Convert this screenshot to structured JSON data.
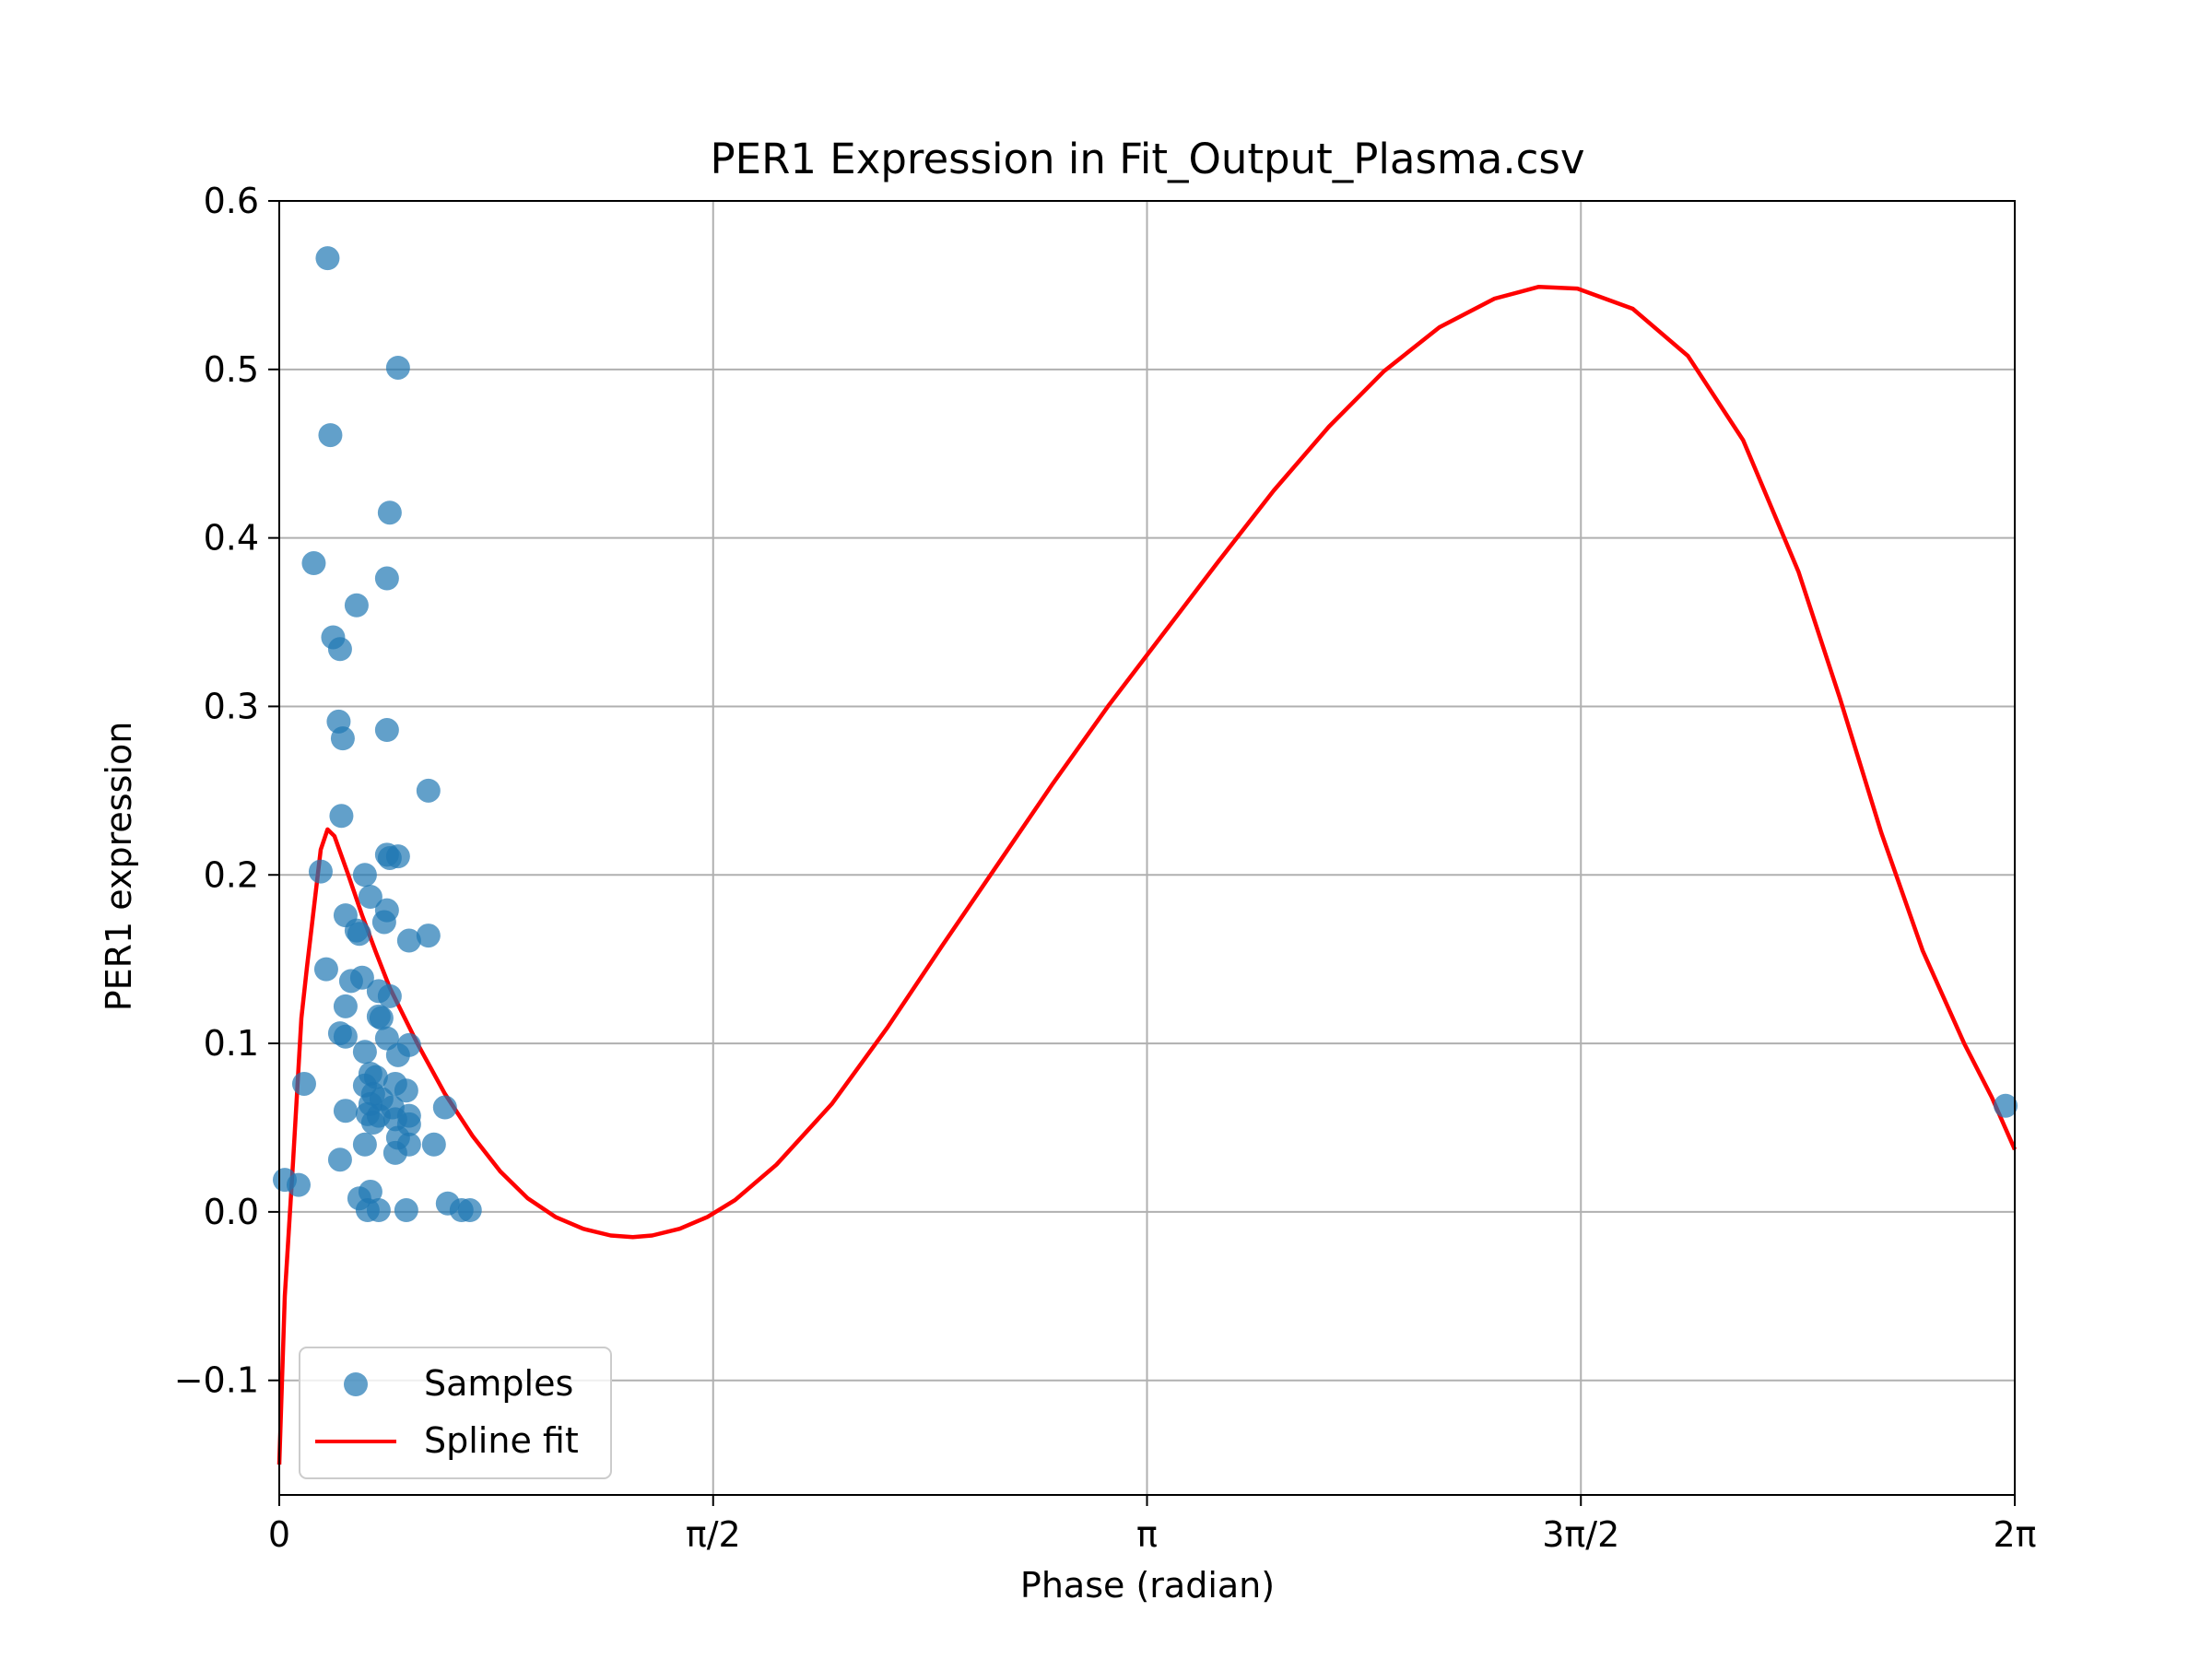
{
  "chart_data": {
    "type": "scatter",
    "title": "PER1 Expression in Fit_Output_Plasma.csv",
    "xlabel": "Phase (radian)",
    "ylabel": "PER1 expression",
    "xlim": [
      0,
      6.2832
    ],
    "ylim": [
      -0.168,
      0.6
    ],
    "grid": true,
    "legend_position": "bottom-left",
    "x_ticks": [
      {
        "value": 0,
        "label": "0"
      },
      {
        "value": 1.5708,
        "label": "π/2"
      },
      {
        "value": 3.1416,
        "label": "π"
      },
      {
        "value": 4.7124,
        "label": "3π/2"
      },
      {
        "value": 6.2832,
        "label": "2π"
      }
    ],
    "y_ticks": [
      {
        "value": -0.1,
        "label": "−0.1"
      },
      {
        "value": 0.0,
        "label": "0.0"
      },
      {
        "value": 0.1,
        "label": "0.1"
      },
      {
        "value": 0.2,
        "label": "0.2"
      },
      {
        "value": 0.3,
        "label": "0.3"
      },
      {
        "value": 0.4,
        "label": "0.4"
      },
      {
        "value": 0.5,
        "label": "0.5"
      },
      {
        "value": 0.6,
        "label": "0.6"
      }
    ],
    "series": [
      {
        "name": "Samples",
        "kind": "scatter",
        "color": "#1f77b4",
        "points": [
          [
            0.175,
            0.566
          ],
          [
            0.43,
            0.501
          ],
          [
            0.185,
            0.461
          ],
          [
            0.4,
            0.415
          ],
          [
            0.125,
            0.385
          ],
          [
            0.39,
            0.376
          ],
          [
            0.28,
            0.36
          ],
          [
            0.195,
            0.341
          ],
          [
            0.22,
            0.334
          ],
          [
            0.215,
            0.291
          ],
          [
            0.39,
            0.286
          ],
          [
            0.23,
            0.281
          ],
          [
            0.54,
            0.25
          ],
          [
            0.225,
            0.235
          ],
          [
            0.39,
            0.212
          ],
          [
            0.43,
            0.211
          ],
          [
            0.4,
            0.21
          ],
          [
            0.15,
            0.202
          ],
          [
            0.31,
            0.2
          ],
          [
            0.33,
            0.187
          ],
          [
            0.24,
            0.176
          ],
          [
            0.39,
            0.179
          ],
          [
            0.38,
            0.172
          ],
          [
            0.28,
            0.167
          ],
          [
            0.29,
            0.165
          ],
          [
            0.47,
            0.161
          ],
          [
            0.54,
            0.164
          ],
          [
            0.17,
            0.144
          ],
          [
            0.3,
            0.139
          ],
          [
            0.26,
            0.137
          ],
          [
            0.36,
            0.131
          ],
          [
            0.4,
            0.128
          ],
          [
            0.24,
            0.122
          ],
          [
            0.36,
            0.116
          ],
          [
            0.37,
            0.115
          ],
          [
            0.22,
            0.106
          ],
          [
            0.24,
            0.104
          ],
          [
            0.39,
            0.103
          ],
          [
            0.47,
            0.099
          ],
          [
            0.31,
            0.095
          ],
          [
            0.43,
            0.093
          ],
          [
            0.33,
            0.082
          ],
          [
            0.35,
            0.08
          ],
          [
            0.09,
            0.076
          ],
          [
            0.31,
            0.075
          ],
          [
            0.42,
            0.076
          ],
          [
            0.46,
            0.072
          ],
          [
            0.34,
            0.07
          ],
          [
            0.37,
            0.067
          ],
          [
            0.33,
            0.064
          ],
          [
            0.41,
            0.062
          ],
          [
            0.24,
            0.06
          ],
          [
            0.32,
            0.058
          ],
          [
            0.36,
            0.057
          ],
          [
            0.47,
            0.057
          ],
          [
            0.6,
            0.062
          ],
          [
            0.42,
            0.055
          ],
          [
            0.34,
            0.053
          ],
          [
            0.47,
            0.052
          ],
          [
            0.43,
            0.044
          ],
          [
            0.31,
            0.04
          ],
          [
            0.47,
            0.04
          ],
          [
            0.56,
            0.04
          ],
          [
            0.42,
            0.035
          ],
          [
            0.22,
            0.031
          ],
          [
            0.02,
            0.019
          ],
          [
            0.07,
            0.016
          ],
          [
            0.33,
            0.012
          ],
          [
            0.29,
            0.008
          ],
          [
            0.61,
            0.005
          ],
          [
            0.32,
            0.001
          ],
          [
            0.36,
            0.001
          ],
          [
            0.46,
            0.001
          ],
          [
            0.66,
            0.001
          ],
          [
            0.69,
            0.001
          ],
          [
            6.25,
            0.063
          ]
        ]
      },
      {
        "name": "Spline fit",
        "kind": "line",
        "color": "#ff0000",
        "points": [
          [
            0.0,
            -0.15
          ],
          [
            0.02,
            -0.05
          ],
          [
            0.05,
            0.03
          ],
          [
            0.08,
            0.115
          ],
          [
            0.1,
            0.145
          ],
          [
            0.125,
            0.18
          ],
          [
            0.15,
            0.215
          ],
          [
            0.175,
            0.227
          ],
          [
            0.2,
            0.223
          ],
          [
            0.25,
            0.2
          ],
          [
            0.3,
            0.176
          ],
          [
            0.35,
            0.154
          ],
          [
            0.4,
            0.133
          ],
          [
            0.5,
            0.1
          ],
          [
            0.6,
            0.07
          ],
          [
            0.7,
            0.045
          ],
          [
            0.8,
            0.024
          ],
          [
            0.9,
            0.008
          ],
          [
            1.0,
            -0.003
          ],
          [
            1.1,
            -0.01
          ],
          [
            1.2,
            -0.014
          ],
          [
            1.28,
            -0.015
          ],
          [
            1.35,
            -0.014
          ],
          [
            1.45,
            -0.01
          ],
          [
            1.55,
            -0.003
          ],
          [
            1.65,
            0.007
          ],
          [
            1.8,
            0.028
          ],
          [
            2.0,
            0.064
          ],
          [
            2.2,
            0.109
          ],
          [
            2.4,
            0.158
          ],
          [
            2.6,
            0.206
          ],
          [
            2.8,
            0.254
          ],
          [
            3.0,
            0.3
          ],
          [
            3.2,
            0.343
          ],
          [
            3.4,
            0.386
          ],
          [
            3.6,
            0.428
          ],
          [
            3.8,
            0.466
          ],
          [
            4.0,
            0.499
          ],
          [
            4.2,
            0.525
          ],
          [
            4.4,
            0.542
          ],
          [
            4.56,
            0.549
          ],
          [
            4.7,
            0.548
          ],
          [
            4.9,
            0.536
          ],
          [
            5.1,
            0.508
          ],
          [
            5.3,
            0.458
          ],
          [
            5.5,
            0.38
          ],
          [
            5.65,
            0.305
          ],
          [
            5.8,
            0.225
          ],
          [
            5.95,
            0.155
          ],
          [
            6.1,
            0.1
          ],
          [
            6.2,
            0.068
          ],
          [
            6.2832,
            0.037
          ]
        ]
      }
    ]
  }
}
